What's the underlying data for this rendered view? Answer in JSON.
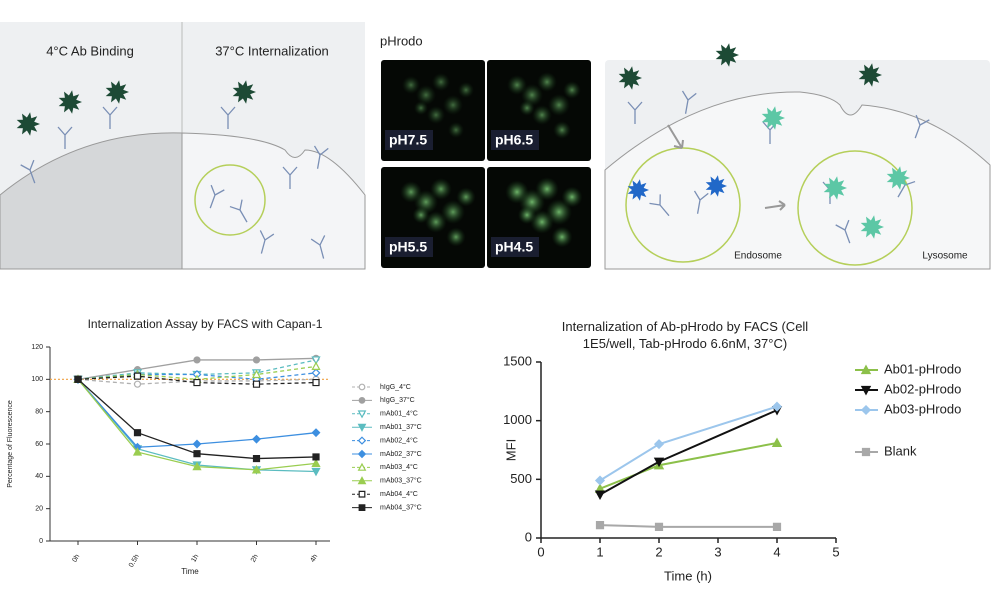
{
  "diagram": {
    "left_panel": [
      "4°C Ab Binding",
      "37°C Internalization"
    ],
    "microscopy": {
      "title": "pHrodo",
      "panels": [
        "pH7.5",
        "pH6.5",
        "pH5.5",
        "pH4.5"
      ]
    },
    "right_panel": [
      "Endosome",
      "Lysosome"
    ]
  },
  "chart_data": [
    {
      "type": "line",
      "title": "Internalization Assay by FACS with Capan-1",
      "x_label": "Time",
      "y_label": "Percentage of Fluorescence",
      "categories": [
        "0h",
        "0.5h",
        "1h",
        "2h",
        "4h"
      ],
      "ylim": [
        0,
        120
      ],
      "yticks": [
        0,
        20,
        40,
        60,
        80,
        100,
        120
      ],
      "reference_line": 100,
      "reference_color": "#f0a040",
      "series": [
        {
          "name": "hIgG_4°C",
          "color": "#b0b0b0",
          "marker": "circle",
          "filled": false,
          "dashed": true,
          "values": [
            100,
            97,
            99,
            99,
            100
          ]
        },
        {
          "name": "hIgG_37°C",
          "color": "#a0a0a0",
          "marker": "circle",
          "filled": true,
          "dashed": false,
          "values": [
            100,
            106,
            112,
            112,
            113
          ]
        },
        {
          "name": "mAb01_4°C",
          "color": "#5bbcc0",
          "marker": "tri-down",
          "filled": false,
          "dashed": true,
          "values": [
            100,
            104,
            103,
            104,
            112
          ]
        },
        {
          "name": "mAb01_37°C",
          "color": "#5bbcc0",
          "marker": "tri-down",
          "filled": true,
          "dashed": false,
          "values": [
            100,
            57,
            47,
            44,
            43
          ]
        },
        {
          "name": "mAb02_4°C",
          "color": "#3d8fe0",
          "marker": "diamond",
          "filled": false,
          "dashed": true,
          "values": [
            100,
            103,
            103,
            100,
            104
          ]
        },
        {
          "name": "mAb02_37°C",
          "color": "#3d8fe0",
          "marker": "diamond",
          "filled": true,
          "dashed": false,
          "values": [
            100,
            58,
            60,
            63,
            67
          ]
        },
        {
          "name": "mAb03_4°C",
          "color": "#9acd50",
          "marker": "tri-up",
          "filled": false,
          "dashed": true,
          "values": [
            100,
            103,
            100,
            103,
            108
          ]
        },
        {
          "name": "mAb03_37°C",
          "color": "#9acd50",
          "marker": "tri-up",
          "filled": true,
          "dashed": false,
          "values": [
            100,
            55,
            46,
            44,
            48
          ]
        },
        {
          "name": "mAb04_4°C",
          "color": "#222222",
          "marker": "square",
          "filled": false,
          "dashed": true,
          "values": [
            100,
            102,
            98,
            97,
            98
          ]
        },
        {
          "name": "mAb04_37°C",
          "color": "#222222",
          "marker": "square",
          "filled": true,
          "dashed": false,
          "values": [
            100,
            67,
            54,
            51,
            52
          ]
        }
      ]
    },
    {
      "type": "scatter-line",
      "title": "Internalization of Ab-pHrodo by FACS (Cell 1E5/well, Tab-pHrodo 6.6nM, 37°C)",
      "x_label": "Time (h)",
      "y_label": "MFI",
      "x": [
        1,
        2,
        4
      ],
      "xlim": [
        0,
        5
      ],
      "xticks": [
        0,
        1,
        2,
        3,
        4,
        5
      ],
      "ylim": [
        0,
        1500
      ],
      "yticks": [
        0,
        500,
        1000,
        1500
      ],
      "series": [
        {
          "name": "Ab01-pHrodo",
          "color": "#8cc04a",
          "marker": "tri-up",
          "values": [
            420,
            620,
            810
          ]
        },
        {
          "name": "Ab02-pHrodo",
          "color": "#111111",
          "marker": "tri-down",
          "values": [
            370,
            650,
            1090
          ]
        },
        {
          "name": "Ab03-pHrodo",
          "color": "#9cc6ec",
          "marker": "diamond",
          "values": [
            490,
            800,
            1120
          ]
        },
        {
          "name": "Blank",
          "color": "#a8a8a8",
          "marker": "square",
          "values": [
            110,
            95,
            95
          ]
        }
      ]
    }
  ]
}
